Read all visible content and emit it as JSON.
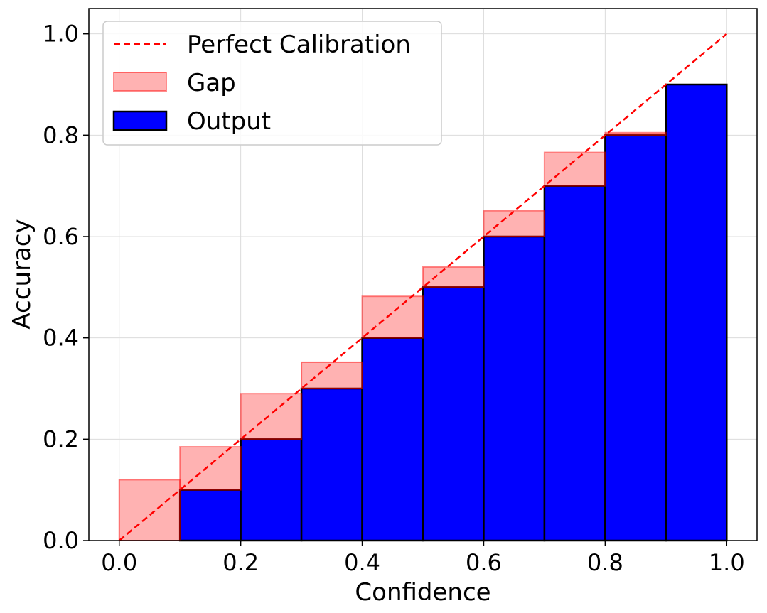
{
  "chart_data": {
    "type": "bar",
    "xlabel": "Confidence",
    "ylabel": "Accuracy",
    "xlim": [
      -0.05,
      1.05
    ],
    "ylim": [
      0.0,
      1.05
    ],
    "grid": true,
    "legend_position": "top-left",
    "x_ticks": [
      0.0,
      0.2,
      0.4,
      0.6,
      0.8,
      1.0
    ],
    "y_ticks": [
      0.0,
      0.2,
      0.4,
      0.6,
      0.8,
      1.0
    ],
    "x_tick_labels": [
      "0.0",
      "0.2",
      "0.4",
      "0.6",
      "0.8",
      "1.0"
    ],
    "y_tick_labels": [
      "0.0",
      "0.2",
      "0.4",
      "0.6",
      "0.8",
      "1.0"
    ],
    "bin_edges": [
      0.0,
      0.1,
      0.2,
      0.3,
      0.4,
      0.5,
      0.6,
      0.7,
      0.8,
      0.9,
      1.0
    ],
    "series": [
      {
        "name": "Output",
        "color": "#0000ff",
        "edge_color": "#000000",
        "values": [
          0.0,
          0.1,
          0.2,
          0.3,
          0.4,
          0.5,
          0.6,
          0.7,
          0.8,
          0.9
        ]
      },
      {
        "name": "Gap",
        "color": "#ff0000",
        "alpha": 0.3,
        "values": [
          0.12,
          0.185,
          0.29,
          0.352,
          0.482,
          0.54,
          0.651,
          0.766,
          0.805,
          0.0
        ]
      },
      {
        "name": "Perfect Calibration",
        "color": "#ff0000",
        "style": "dashed",
        "x": [
          0.0,
          1.0
        ],
        "y": [
          0.0,
          1.0
        ]
      }
    ],
    "legend": [
      "Perfect Calibration",
      "Gap",
      "Output"
    ]
  }
}
